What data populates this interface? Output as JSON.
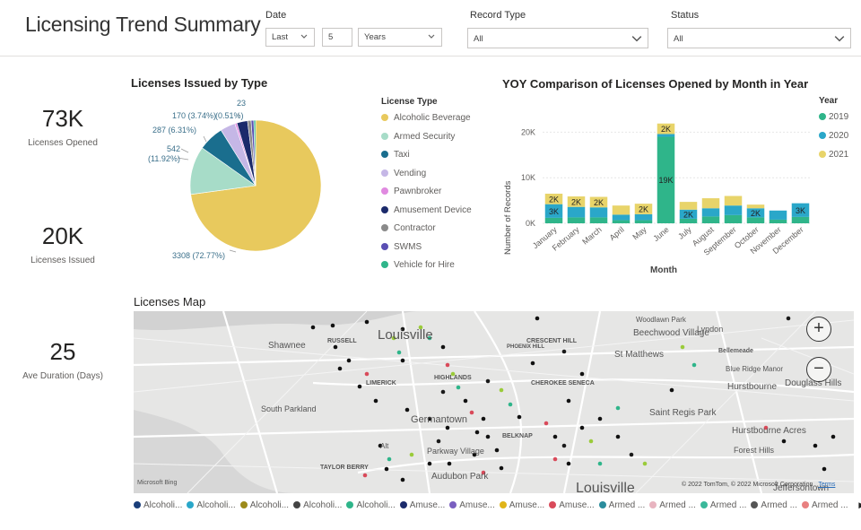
{
  "title": "Licensing Trend Summary",
  "filters": {
    "date_label": "Date",
    "date_mode": "Last",
    "date_count": "5",
    "date_unit": "Years",
    "record_type_label": "Record Type",
    "record_type_value": "All",
    "status_label": "Status",
    "status_value": "All"
  },
  "kpis": [
    {
      "value": "73K",
      "label": "Licenses Opened"
    },
    {
      "value": "20K",
      "label": "Licenses Issued"
    },
    {
      "value": "25",
      "label": "Ave Duration (Days)"
    }
  ],
  "pie": {
    "title": "Licenses Issued by Type",
    "legend_title": "License Type",
    "labels": {
      "l1": "23",
      "l2": "170 (3.74%)",
      "l3": "(0.51%)",
      "l4": "287 (6.31%)",
      "l5a": "542",
      "l5b": "(11.92%)",
      "l6": "3308 (72.77%)"
    }
  },
  "license_types": [
    {
      "name": "Alcoholic Beverage",
      "color": "#e8c95d"
    },
    {
      "name": "Armed Security",
      "color": "#a7dcc8"
    },
    {
      "name": "Taxi",
      "color": "#1a6e8e"
    },
    {
      "name": "Vending",
      "color": "#c5b7e6"
    },
    {
      "name": "Pawnbroker",
      "color": "#e08ae0"
    },
    {
      "name": "Amusement Device",
      "color": "#1b2a6b"
    },
    {
      "name": "Contractor",
      "color": "#8a8a8a"
    },
    {
      "name": "SWMS",
      "color": "#5a4fb3"
    },
    {
      "name": "Vehicle for Hire",
      "color": "#2fb58a"
    }
  ],
  "bar": {
    "title": "YOY Comparison of Licenses Opened by Month in Year",
    "legend_title": "Year",
    "ylabel": "Number of Records",
    "xlabel": "Month",
    "yticks": [
      "0K",
      "10K",
      "20K"
    ]
  },
  "map": {
    "title": "Licenses Map",
    "places": [
      "Shawnee",
      "RUSSELL",
      "Louisville",
      "CRESCENT HILL",
      "Woodlawn Park",
      "Beechwood Village",
      "Lyndon",
      "Bellemeade",
      "St Matthews",
      "Blue Ridge Manor",
      "Hurstbourne",
      "Douglass Hills",
      "CHEROKEE SENECA",
      "LIMERICK",
      "Saint Regis Park",
      "South Parkland",
      "Germantown",
      "Hurstbourne Acres",
      "Parkway Village",
      "BELKNAP",
      "Forest Hills",
      "Audubon Park",
      "TAYLOR BERRY",
      "Louisville",
      "Jeffersontown",
      "Alt",
      "HIGHLANDS",
      "PHOENIX HILL"
    ],
    "attribution": "© 2022 TomTom, © 2022 Microsoft Corporation",
    "terms": "Terms",
    "bing": "Microsoft Bing",
    "zoom_in": "+",
    "zoom_out": "−"
  },
  "map_legend": [
    {
      "name": "Alcoholi...",
      "color": "#1a3e7a"
    },
    {
      "name": "Alcoholi...",
      "color": "#2aa7c9"
    },
    {
      "name": "Alcoholi...",
      "color": "#9c8a1a"
    },
    {
      "name": "Alcoholi...",
      "color": "#444444"
    },
    {
      "name": "Alcoholi...",
      "color": "#2fb58a"
    },
    {
      "name": "Amuse...",
      "color": "#1b2a6b"
    },
    {
      "name": "Amuse...",
      "color": "#7a5fc0"
    },
    {
      "name": "Amuse...",
      "color": "#e0b419"
    },
    {
      "name": "Amuse...",
      "color": "#d94a5a"
    },
    {
      "name": "Armed ...",
      "color": "#2a8c9c"
    },
    {
      "name": "Armed ...",
      "color": "#e8b4c0"
    },
    {
      "name": "Armed ...",
      "color": "#3ab89a"
    },
    {
      "name": "Armed ...",
      "color": "#555555"
    },
    {
      "name": "Armed ...",
      "color": "#e88080"
    }
  ],
  "chart_data": [
    {
      "type": "pie",
      "title": "Licenses Issued by Type",
      "categories": [
        "Alcoholic Beverage",
        "Armed Security",
        "Taxi",
        "Vending",
        "Pawnbroker",
        "Amusement Device",
        "Contractor",
        "SWMS",
        "Vehicle for Hire"
      ],
      "values": [
        3308,
        542,
        287,
        170,
        23,
        120,
        40,
        30,
        20
      ],
      "percents": [
        72.77,
        11.92,
        6.31,
        3.74,
        0.51,
        null,
        null,
        null,
        null
      ],
      "legend": "right"
    },
    {
      "type": "bar",
      "stacked": true,
      "title": "YOY Comparison of Licenses Opened by Month in Year",
      "xlabel": "Month",
      "ylabel": "Number of Records",
      "categories": [
        "January",
        "February",
        "March",
        "April",
        "May",
        "June",
        "July",
        "August",
        "September",
        "October",
        "November",
        "December"
      ],
      "ylim": [
        0,
        25000
      ],
      "legend": "right",
      "series": [
        {
          "name": "2019",
          "color": "#2fb58a",
          "values": [
            1200,
            1300,
            1300,
            700,
            700,
            19000,
            1000,
            1500,
            1800,
            1300,
            800,
            1400
          ]
        },
        {
          "name": "2020",
          "color": "#2aa7c9",
          "values": [
            3000,
            2300,
            2200,
            1200,
            1300,
            600,
            2000,
            1800,
            2100,
            2000,
            2000,
            3000
          ]
        },
        {
          "name": "2021",
          "color": "#e8d46a",
          "values": [
            2300,
            2300,
            2300,
            2000,
            2300,
            2300,
            1700,
            2200,
            2100,
            800,
            0,
            0
          ]
        }
      ],
      "data_labels": [
        {
          "category": "January",
          "series": "2021",
          "text": "2K"
        },
        {
          "category": "January",
          "series": "2020",
          "text": "3K"
        },
        {
          "category": "February",
          "series": "2021",
          "text": "2K"
        },
        {
          "category": "March",
          "series": "2021",
          "text": "2K"
        },
        {
          "category": "May",
          "series": "2021",
          "text": "2K"
        },
        {
          "category": "June",
          "series": "2021",
          "text": "2K"
        },
        {
          "category": "June",
          "series": "2019",
          "text": "19K"
        },
        {
          "category": "July",
          "series": "2020",
          "text": "2K"
        },
        {
          "category": "October",
          "series": "2020",
          "text": "2K"
        },
        {
          "category": "December",
          "series": "2020",
          "text": "3K"
        }
      ]
    }
  ]
}
